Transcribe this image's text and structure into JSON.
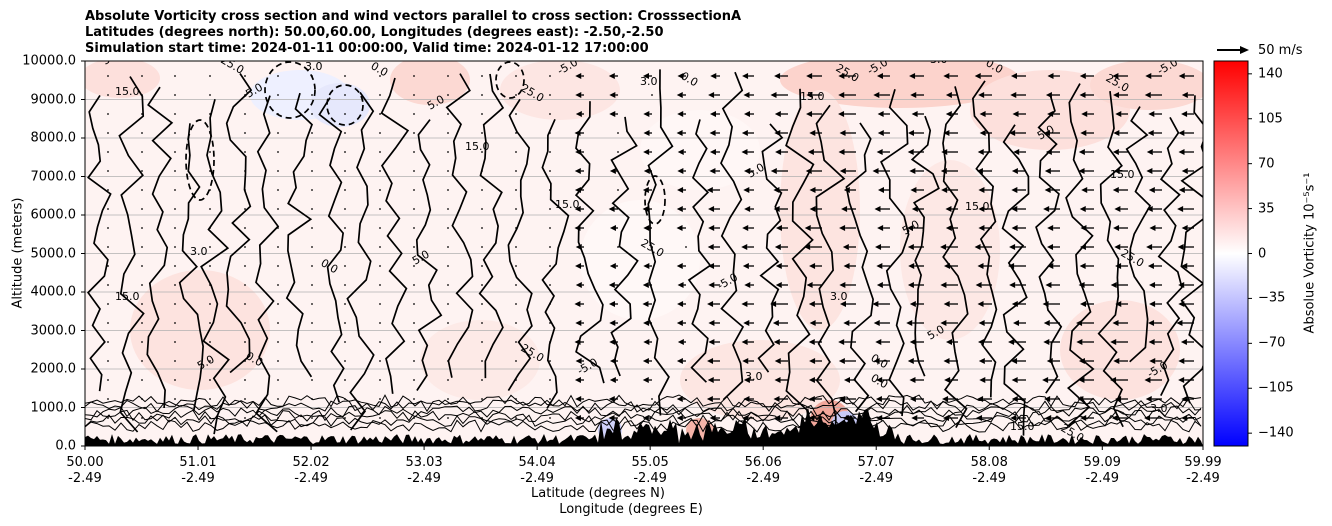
{
  "title_lines": [
    "Absolute Vorticity cross section and wind vectors parallel to cross section: CrosssectionA",
    "Latitudes (degrees north): 50.00,60.00, Longitudes (degrees east): -2.50,-2.50",
    "Simulation start time: 2024-01-11 00:00:00, Valid time: 2024-01-12 17:00:00"
  ],
  "chart_data": {
    "type": "heatmap",
    "ylabel": "Altitude (meters)",
    "xlabel_lat": "Latitude (degrees N)",
    "xlabel_lon": "Longitude (degrees E)",
    "ylim": [
      0,
      10000
    ],
    "yticks": [
      "0.0",
      "1000.0",
      "2000.0",
      "3000.0",
      "4000.0",
      "5000.0",
      "6000.0",
      "7000.0",
      "8000.0",
      "9000.0",
      "10000.0"
    ],
    "xticks": [
      {
        "lat": "50.00",
        "lon": "-2.49"
      },
      {
        "lat": "51.01",
        "lon": "-2.49"
      },
      {
        "lat": "52.02",
        "lon": "-2.49"
      },
      {
        "lat": "53.03",
        "lon": "-2.49"
      },
      {
        "lat": "54.04",
        "lon": "-2.49"
      },
      {
        "lat": "55.05",
        "lon": "-2.49"
      },
      {
        "lat": "56.06",
        "lon": "-2.49"
      },
      {
        "lat": "57.07",
        "lon": "-2.49"
      },
      {
        "lat": "58.08",
        "lon": "-2.49"
      },
      {
        "lat": "59.09",
        "lon": "-2.49"
      },
      {
        "lat": "59.99",
        "lon": "-2.49"
      }
    ],
    "colorbar": {
      "label": "Absolue Vorticity 10⁻⁵s⁻¹",
      "range": [
        -150,
        150
      ],
      "ticks": [
        "140",
        "105",
        "70",
        "35",
        "0",
        "−35",
        "−70",
        "−105",
        "−140"
      ],
      "colormap": "bwr"
    },
    "vector_reference": "50 m/s",
    "grid": "horizontal",
    "contour_label_values": [
      "5.0",
      "15.0",
      "25.0",
      "-5.0",
      "3.0",
      "0.0"
    ]
  },
  "colors": {
    "positive": "#ff0000",
    "negative": "#0000ff",
    "contour": "#000000"
  }
}
